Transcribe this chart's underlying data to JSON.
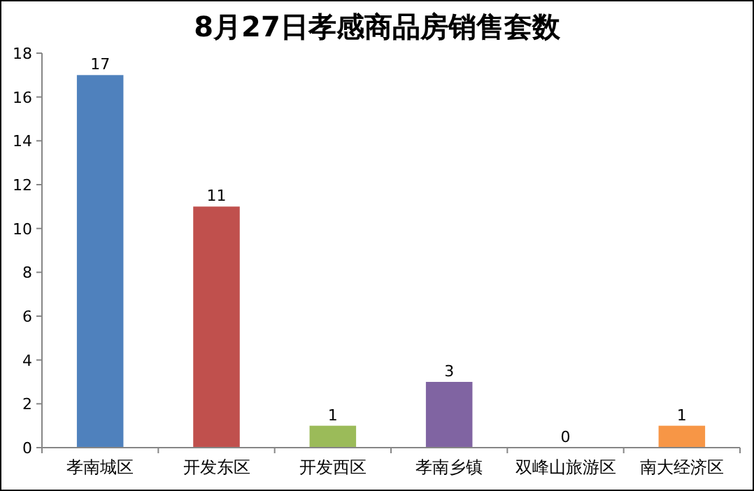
{
  "chart_data": {
    "type": "bar",
    "title": "8月27日孝感商品房销售套数",
    "categories": [
      "孝南城区",
      "开发东区",
      "开发西区",
      "孝南乡镇",
      "双峰山旅游区",
      "南大经济区"
    ],
    "values": [
      17,
      11,
      1,
      3,
      0,
      1
    ],
    "colors": [
      "#4f81bd",
      "#c0504d",
      "#9bbb59",
      "#8064a2",
      "#4bacc6",
      "#f79646"
    ],
    "ylim": [
      0,
      18
    ],
    "yticks": [
      0,
      2,
      4,
      6,
      8,
      10,
      12,
      14,
      16,
      18
    ],
    "data_labels": true,
    "grid": false
  }
}
